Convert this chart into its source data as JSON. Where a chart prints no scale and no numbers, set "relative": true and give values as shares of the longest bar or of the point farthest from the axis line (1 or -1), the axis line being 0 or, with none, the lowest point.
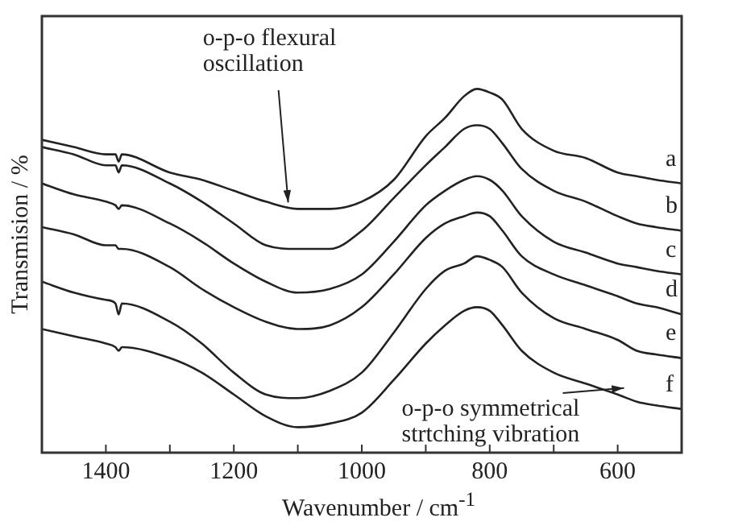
{
  "chart_data": {
    "type": "line",
    "relative": true,
    "xlabel": "Wavenumber / cm$^{-1}$",
    "ylabel": "Transmision / %",
    "x": [
      1500,
      1450,
      1400,
      1385,
      1380,
      1375,
      1300,
      1250,
      1200,
      1150,
      1100,
      1050,
      1000,
      950,
      900,
      870,
      840,
      820,
      800,
      780,
      750,
      700,
      650,
      600,
      570,
      540,
      500
    ],
    "xlim": [
      1500,
      500
    ],
    "xticks": [
      1400,
      {
        "value": 1300,
        "label": null
      },
      1200,
      {
        "value": 1100,
        "label": null
      },
      1000,
      {
        "value": 900,
        "label": null
      },
      800,
      {
        "value": 700,
        "label": null
      },
      600
    ],
    "marker": "none",
    "line_style": "solid",
    "series": [
      {
        "name": "a",
        "color": "#222222",
        "values": [
          0.86,
          0.84,
          0.82,
          0.82,
          0.8,
          0.82,
          0.77,
          0.75,
          0.72,
          0.69,
          0.67,
          0.67,
          0.69,
          0.75,
          0.87,
          0.92,
          0.98,
          1,
          0.99,
          0.97,
          0.89,
          0.83,
          0.81,
          0.77,
          0.76,
          0.75,
          0.74
        ]
      },
      {
        "name": "b",
        "color": "#222222",
        "values": [
          0.84,
          0.82,
          0.79,
          0.79,
          0.77,
          0.79,
          0.74,
          0.69,
          0.63,
          0.57,
          0.56,
          0.56,
          0.61,
          0.7,
          0.79,
          0.84,
          0.89,
          0.9,
          0.89,
          0.85,
          0.78,
          0.72,
          0.69,
          0.65,
          0.63,
          0.62,
          0.61
        ]
      },
      {
        "name": "c",
        "color": "#222222",
        "values": [
          0.74,
          0.71,
          0.69,
          0.68,
          0.67,
          0.68,
          0.63,
          0.58,
          0.52,
          0.47,
          0.44,
          0.45,
          0.49,
          0.58,
          0.68,
          0.72,
          0.75,
          0.76,
          0.75,
          0.72,
          0.65,
          0.58,
          0.55,
          0.52,
          0.51,
          0.5,
          0.49
        ]
      },
      {
        "name": "d",
        "color": "#222222",
        "values": [
          0.62,
          0.6,
          0.57,
          0.57,
          0.56,
          0.56,
          0.51,
          0.45,
          0.4,
          0.36,
          0.34,
          0.35,
          0.4,
          0.49,
          0.59,
          0.63,
          0.65,
          0.66,
          0.65,
          0.61,
          0.54,
          0.49,
          0.46,
          0.43,
          0.41,
          0.4,
          0.38
        ]
      },
      {
        "name": "e",
        "color": "#222222",
        "values": [
          0.47,
          0.44,
          0.42,
          0.41,
          0.38,
          0.41,
          0.36,
          0.3,
          0.22,
          0.16,
          0.15,
          0.17,
          0.22,
          0.33,
          0.45,
          0.5,
          0.52,
          0.54,
          0.53,
          0.51,
          0.44,
          0.37,
          0.34,
          0.31,
          0.28,
          0.27,
          0.26
        ]
      },
      {
        "name": "f",
        "color": "#222222",
        "values": [
          0.34,
          0.32,
          0.3,
          0.29,
          0.28,
          0.29,
          0.26,
          0.22,
          0.16,
          0.1,
          0.07,
          0.08,
          0.11,
          0.2,
          0.3,
          0.35,
          0.39,
          0.4,
          0.39,
          0.35,
          0.28,
          0.22,
          0.19,
          0.16,
          0.14,
          0.13,
          0.12
        ]
      }
    ],
    "annotations": [
      {
        "text": "o-p-o flexural\noscillation",
        "x": 1110,
        "y": 0.67
      },
      {
        "text": "o-p-o symmetrical\nstrtching vibration",
        "x": 585,
        "y": 0.16
      }
    ]
  }
}
